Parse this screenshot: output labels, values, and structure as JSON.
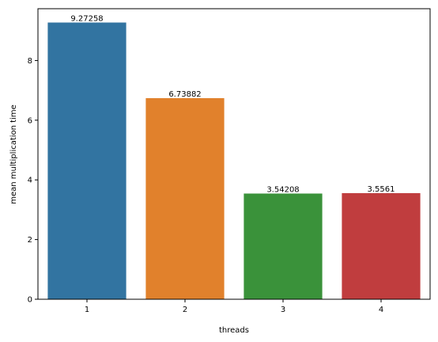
{
  "chart_data": {
    "type": "bar",
    "xlabel": "threads",
    "ylabel": "mean multiplication time",
    "categories": [
      "1",
      "2",
      "3",
      "4"
    ],
    "values": [
      9.27258,
      6.73882,
      3.54208,
      3.5561
    ],
    "data_labels": [
      "9.27258",
      "6.73882",
      "3.54208",
      "3.5561"
    ],
    "colors": [
      "#3274a1",
      "#e1812c",
      "#3a923a",
      "#c03d3e"
    ],
    "ylim": [
      0,
      9.736
    ],
    "yticks": [
      0,
      2,
      4,
      6,
      8
    ],
    "ytick_labels": [
      "0",
      "2",
      "4",
      "6",
      "8"
    ],
    "grid": false,
    "legend": "none"
  }
}
